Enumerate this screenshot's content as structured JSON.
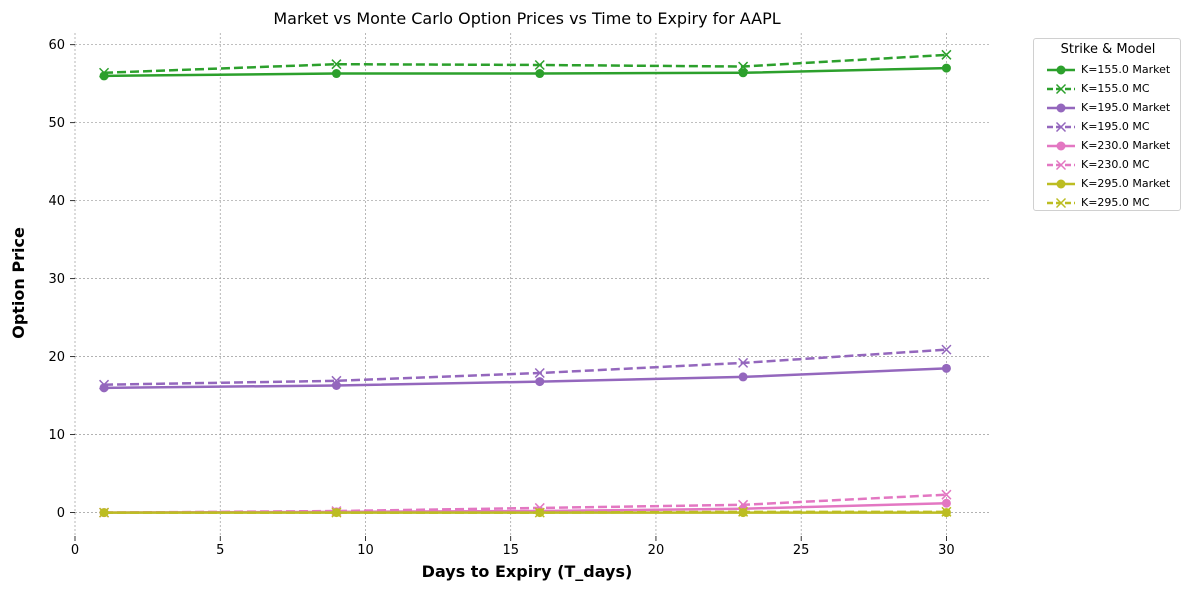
{
  "chart_data": {
    "type": "line",
    "title": "Market vs Monte Carlo Option Prices vs Time to Expiry for AAPL",
    "xlabel": "Days to Expiry (T_days)",
    "ylabel": "Option Price",
    "xlim": [
      0,
      31.5
    ],
    "ylim": [
      -3,
      61.5
    ],
    "x_ticks": [
      "0",
      "5",
      "10",
      "15",
      "20",
      "25",
      "30"
    ],
    "y_ticks": [
      "0",
      "10",
      "20",
      "30",
      "40",
      "50",
      "60"
    ],
    "grid": true,
    "legend_title": "Strike & Model",
    "legend_position": "outside-top-right",
    "x": [
      1,
      9,
      16,
      23,
      30
    ],
    "series": [
      {
        "name": "K=155.0 Market",
        "color": "#2ca02c",
        "style": "solid",
        "marker": "circle",
        "values": [
          56.0,
          56.3,
          56.3,
          56.4,
          57.0
        ]
      },
      {
        "name": "K=155.0 MC",
        "color": "#2ca02c",
        "style": "dashed",
        "marker": "x",
        "values": [
          56.4,
          57.5,
          57.4,
          57.2,
          58.7
        ]
      },
      {
        "name": "K=195.0 Market",
        "color": "#9467bd",
        "style": "solid",
        "marker": "circle",
        "values": [
          16.0,
          16.3,
          16.8,
          17.4,
          18.5
        ]
      },
      {
        "name": "K=195.0 MC",
        "color": "#9467bd",
        "style": "dashed",
        "marker": "x",
        "values": [
          16.4,
          16.9,
          17.9,
          19.2,
          20.9
        ]
      },
      {
        "name": "K=230.0 Market",
        "color": "#e377c2",
        "style": "solid",
        "marker": "circle",
        "values": [
          0.0,
          0.1,
          0.2,
          0.5,
          1.2
        ]
      },
      {
        "name": "K=230.0 MC",
        "color": "#e377c2",
        "style": "dashed",
        "marker": "x",
        "values": [
          0.0,
          0.2,
          0.6,
          1.0,
          2.3
        ]
      },
      {
        "name": "K=295.0 Market",
        "color": "#bcbd22",
        "style": "solid",
        "marker": "circle",
        "values": [
          0.0,
          0.0,
          0.0,
          0.0,
          0.0
        ]
      },
      {
        "name": "K=295.0 MC",
        "color": "#bcbd22",
        "style": "dashed",
        "marker": "x",
        "values": [
          0.0,
          0.0,
          0.0,
          0.1,
          0.1
        ]
      }
    ]
  }
}
